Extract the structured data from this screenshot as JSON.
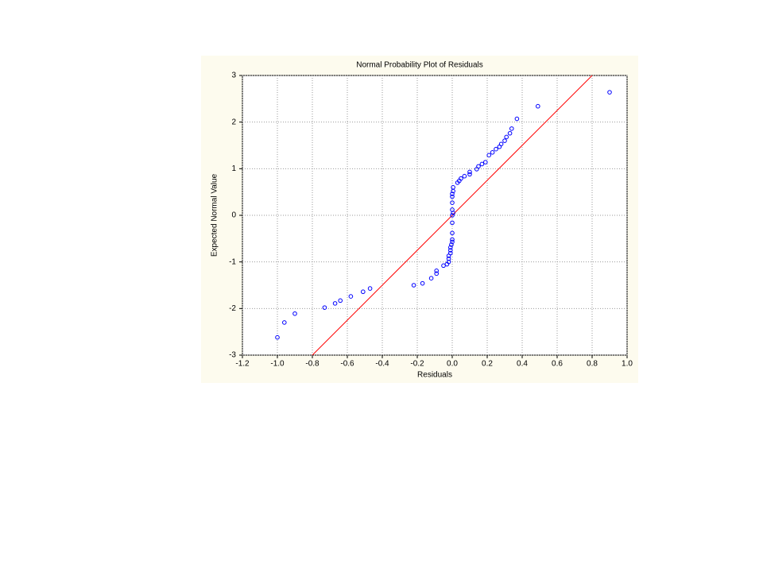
{
  "chart_data": {
    "type": "scatter",
    "title": "Normal Probability Plot of Residuals",
    "xlabel": "Residuals",
    "ylabel": "Expected Normal Value",
    "xlim": [
      -1.2,
      1.0
    ],
    "ylim": [
      -3,
      3
    ],
    "xticks": [
      -1.2,
      {
        "value": -1,
        "label": "-1.0"
      },
      -0.8,
      -0.6,
      -0.4,
      -0.2,
      {
        "value": 0,
        "label": "0.0"
      },
      0.2,
      0.4,
      0.6,
      0.8,
      {
        "value": 1,
        "label": "1.0"
      }
    ],
    "yticks": [
      -3,
      -2,
      -1,
      0,
      1,
      2,
      3
    ],
    "grid": true,
    "series": [
      {
        "color": "#0000ff",
        "x": [
          -1.0,
          -0.96,
          -0.9,
          -0.73,
          -0.67,
          -0.64,
          -0.58,
          -0.51,
          -0.47,
          -0.22,
          -0.17,
          -0.12,
          -0.09,
          -0.09,
          -0.05,
          -0.03,
          -0.02,
          -0.02,
          -0.02,
          -0.01,
          -0.01,
          -0.01,
          -0.005,
          0,
          0,
          0,
          0,
          0,
          0.005,
          0,
          0,
          0,
          0,
          0.005,
          0.005,
          0.03,
          0.04,
          0.05,
          0.07,
          0.1,
          0.1,
          0.14,
          0.15,
          0.17,
          0.19,
          0.21,
          0.23,
          0.25,
          0.27,
          0.28,
          0.3,
          0.31,
          0.33,
          0.34,
          0.37,
          0.49,
          0.9
        ],
        "values": [
          -2.62,
          -2.3,
          -2.11,
          -1.98,
          -1.89,
          -1.83,
          -1.74,
          -1.64,
          -1.57,
          -1.5,
          -1.46,
          -1.35,
          -1.25,
          -1.19,
          -1.08,
          -1.05,
          -1.0,
          -0.93,
          -0.87,
          -0.81,
          -0.75,
          -0.69,
          -0.63,
          -0.57,
          -0.52,
          -0.38,
          -0.16,
          0,
          0.05,
          0.12,
          0.27,
          0.4,
          0.46,
          0.52,
          0.6,
          0.7,
          0.74,
          0.79,
          0.84,
          0.88,
          0.93,
          0.99,
          1.05,
          1.1,
          1.14,
          1.29,
          1.35,
          1.42,
          1.47,
          1.53,
          1.6,
          1.68,
          1.76,
          1.86,
          2.07,
          2.34,
          2.64
        ]
      }
    ],
    "fit_line": {
      "color": "#ff0000",
      "x": [
        -0.8,
        0.8
      ],
      "values": [
        -3,
        3
      ]
    }
  }
}
